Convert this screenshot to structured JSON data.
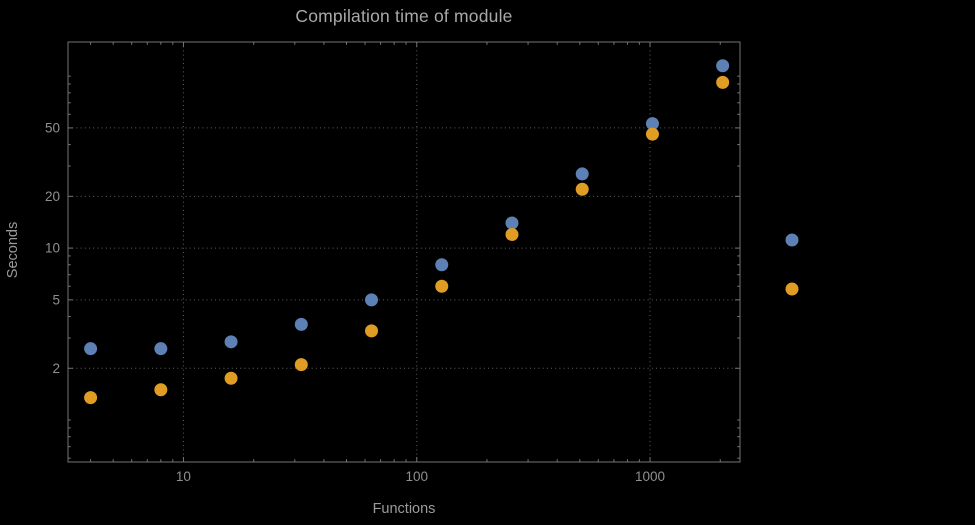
{
  "chart_data": {
    "type": "scatter",
    "title": "Compilation time of module",
    "xlabel": "Functions",
    "ylabel": "Seconds",
    "x_scale": "log",
    "y_scale": "log",
    "xlim": [
      3.2,
      2430
    ],
    "ylim": [
      0.57,
      158
    ],
    "grid": true,
    "legend_position": "right-outside",
    "x": [
      4,
      8,
      16,
      32,
      64,
      128,
      256,
      512,
      1024,
      2048
    ],
    "series": [
      {
        "name": "series-1-blue",
        "color": "#5e81b5",
        "values": [
          2.6,
          2.6,
          2.85,
          3.6,
          5.0,
          8.0,
          14,
          27,
          53,
          115
        ]
      },
      {
        "name": "series-2-orange",
        "color": "#e19c24",
        "values": [
          1.35,
          1.5,
          1.75,
          2.1,
          3.3,
          6.0,
          12,
          22,
          46,
          92
        ]
      }
    ],
    "x_ticks": [
      {
        "v": 10,
        "label": "10"
      },
      {
        "v": 100,
        "label": "100"
      },
      {
        "v": 1000,
        "label": "1000"
      }
    ],
    "y_ticks": [
      {
        "v": 2,
        "label": "2"
      },
      {
        "v": 5,
        "label": "5"
      },
      {
        "v": 10,
        "label": "10"
      },
      {
        "v": 20,
        "label": "20"
      },
      {
        "v": 50,
        "label": "50"
      }
    ],
    "legend_markers": [
      {
        "name": "legend-marker-series-1",
        "color": "#5e81b5",
        "label": ""
      },
      {
        "name": "legend-marker-series-2",
        "color": "#e19c24",
        "label": ""
      }
    ],
    "style": {
      "background": "#000000",
      "frame_color": "#757575",
      "grid_color": "#616161",
      "tick_label_color": "#8f8f8f",
      "title_color": "#a9a9a9",
      "axis_label_color": "#9b9b9b",
      "point_radius": 6.5
    }
  }
}
